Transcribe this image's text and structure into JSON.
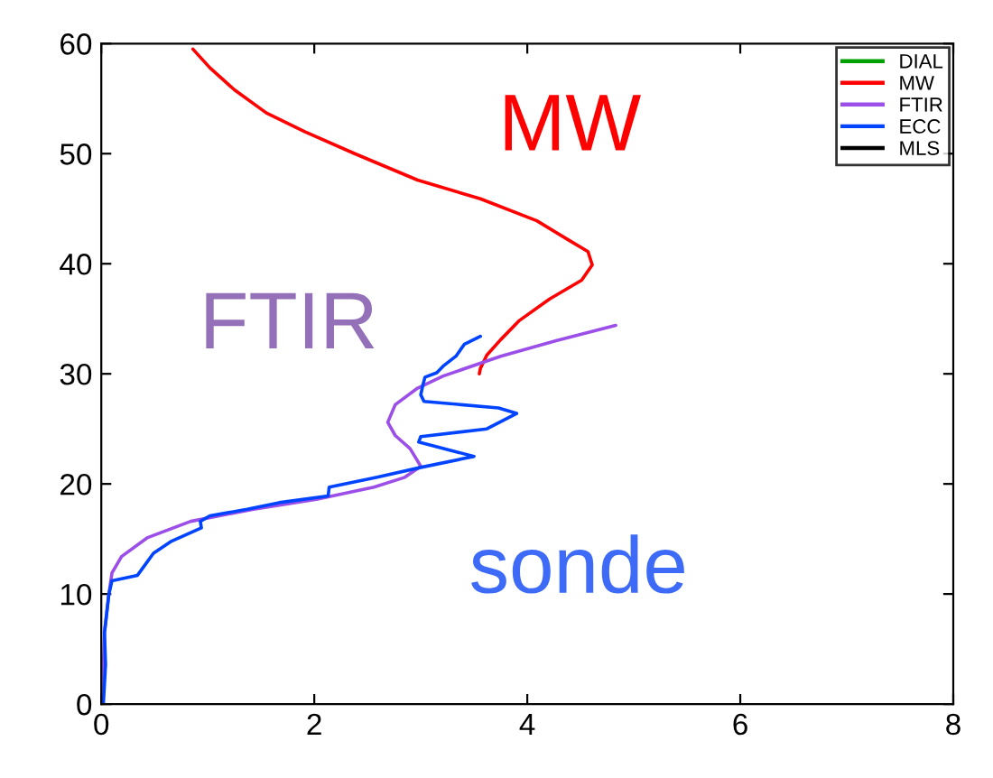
{
  "chart_data": {
    "type": "line",
    "xlim": [
      0,
      8
    ],
    "ylim": [
      0,
      60
    ],
    "xticks": [
      0,
      2,
      4,
      6,
      8
    ],
    "yticks": [
      0,
      10,
      20,
      30,
      40,
      50,
      60
    ],
    "legend": "top right",
    "grid": false,
    "annotations": [
      "MW",
      "FTIR",
      "sonde"
    ],
    "series": [
      {
        "name": "DIAL",
        "color": "#00a000"
      },
      {
        "name": "MW",
        "color": "#ff0000",
        "x": [
          0.86,
          1.02,
          1.25,
          1.55,
          1.91,
          2.38,
          2.97,
          3.56,
          4.09,
          4.38,
          4.57,
          4.61,
          4.51,
          4.21,
          3.92,
          3.75,
          3.62,
          3.56,
          3.55
        ],
        "values": [
          59.5,
          57.8,
          55.8,
          53.7,
          52.0,
          50.0,
          47.6,
          45.9,
          43.9,
          42.2,
          41.1,
          39.9,
          38.5,
          36.8,
          34.8,
          33.1,
          31.7,
          30.5,
          30.0
        ]
      },
      {
        "name": "FTIR",
        "color": "#9b4fe8",
        "x": [
          4.83,
          4.27,
          3.75,
          3.21,
          2.97,
          2.76,
          2.69,
          2.76,
          2.9,
          3.0,
          2.85,
          2.56,
          2.02,
          1.43,
          0.84,
          0.43,
          0.19,
          0.1,
          0.07,
          0.03,
          0.01
        ],
        "values": [
          34.4,
          33.0,
          31.6,
          29.8,
          28.7,
          27.2,
          25.6,
          24.4,
          23.2,
          21.6,
          20.6,
          19.7,
          18.6,
          17.7,
          16.6,
          15.1,
          13.4,
          11.9,
          9.9,
          6.5,
          0.7
        ]
      },
      {
        "name": "ECC",
        "color": "#0044ff",
        "x": [
          3.56,
          3.41,
          3.33,
          3.21,
          3.15,
          3.04,
          3.02,
          3.0,
          3.03,
          3.73,
          3.9,
          3.62,
          3.0,
          2.98,
          3.5,
          3.0,
          2.59,
          2.14,
          2.13,
          1.67,
          1.37,
          1.02,
          0.93,
          0.94,
          0.66,
          0.49,
          0.4,
          0.34,
          0.1,
          0.07,
          0.04,
          0.03,
          0.04,
          0.02
        ],
        "values": [
          33.4,
          32.7,
          31.6,
          30.7,
          30.1,
          29.7,
          29.0,
          28.1,
          27.5,
          26.9,
          26.4,
          25.0,
          24.3,
          23.8,
          22.5,
          21.5,
          20.6,
          19.7,
          18.9,
          18.3,
          17.7,
          17.1,
          16.6,
          16.0,
          14.8,
          13.7,
          12.5,
          11.7,
          11.2,
          9.9,
          7.3,
          6.5,
          3.6,
          0.1
        ]
      },
      {
        "name": "MLS",
        "color": "#000000"
      }
    ]
  }
}
